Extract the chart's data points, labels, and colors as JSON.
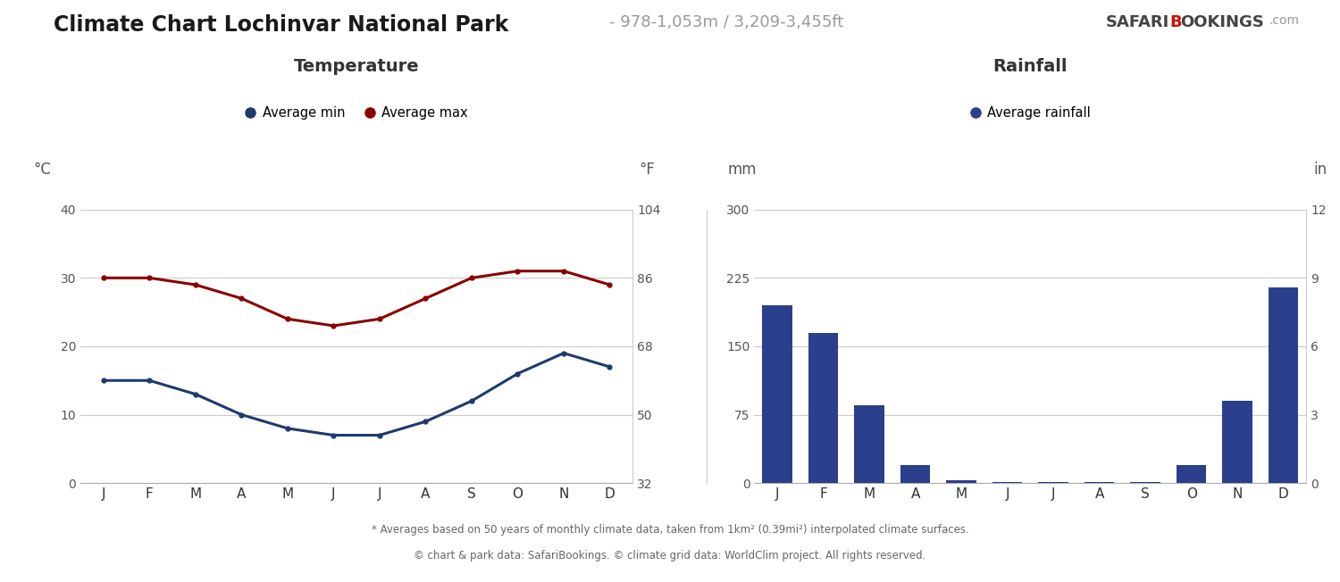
{
  "title_main": "Climate Chart Lochinvar National Park",
  "title_sub": "- 978-1,053m / 3,209-3,455ft",
  "months": [
    "J",
    "F",
    "M",
    "A",
    "M",
    "J",
    "J",
    "A",
    "S",
    "O",
    "N",
    "D"
  ],
  "temp_min": [
    15,
    15,
    13,
    10,
    8,
    7,
    7,
    9,
    12,
    16,
    19,
    17
  ],
  "temp_max": [
    30,
    30,
    29,
    27,
    24,
    23,
    24,
    27,
    30,
    31,
    31,
    29
  ],
  "rainfall_mm": [
    195,
    165,
    85,
    20,
    3,
    1,
    1,
    1,
    1,
    20,
    90,
    215
  ],
  "temp_min_color": "#1e3a6e",
  "temp_max_color": "#8b0000",
  "bar_color": "#2b3f8c",
  "background_color": "#ffffff",
  "grid_color": "#cccccc",
  "text_color": "#555555",
  "dark_text": "#333333",
  "temp_title": "Temperature",
  "rain_title": "Rainfall",
  "temp_ylabel_left": "°C",
  "temp_ylabel_right": "°F",
  "rain_ylabel_left": "mm",
  "rain_ylabel_right": "in",
  "temp_ylim_c": [
    0,
    40
  ],
  "temp_yticks_c": [
    0,
    10,
    20,
    30,
    40
  ],
  "temp_yticks_f": [
    32,
    50,
    68,
    86,
    104
  ],
  "rain_ylim_mm": [
    0,
    300
  ],
  "rain_yticks_mm": [
    0,
    75,
    150,
    225,
    300
  ],
  "rain_yticks_in": [
    0,
    3,
    6,
    9,
    12
  ],
  "footnote1": "* Averages based on 50 years of monthly climate data, taken from 1km² (0.39mi²) interpolated climate surfaces.",
  "footnote2": "© chart & park data: SafariBookings. © climate grid data: WorldClim project. All rights reserved.",
  "logo_safari": "SAFARI",
  "logo_bookings": "BOOKINGS",
  "logo_com": ".com"
}
